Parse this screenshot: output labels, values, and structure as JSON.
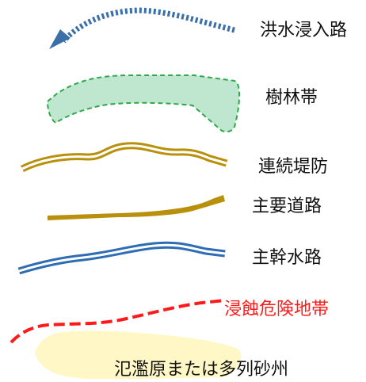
{
  "legend": {
    "items": [
      {
        "id": "flood",
        "label": "洪水浸入路",
        "color": "#3a6fa8"
      },
      {
        "id": "forest",
        "label": "樹林帯",
        "color": "#2ea84a",
        "fill": "#bfe6cf"
      },
      {
        "id": "levee",
        "label": "連続堤防",
        "color": "#b8900c"
      },
      {
        "id": "road",
        "label": "主要道路",
        "color": "#b8900c"
      },
      {
        "id": "channel",
        "label": "主幹水路",
        "color": "#2e6db4"
      },
      {
        "id": "erosion",
        "label": "浸蝕危険地帯",
        "color": "#ff1a1a"
      },
      {
        "id": "plain",
        "label": "氾濫原または多列砂州",
        "color": "#fff8c6"
      }
    ]
  }
}
